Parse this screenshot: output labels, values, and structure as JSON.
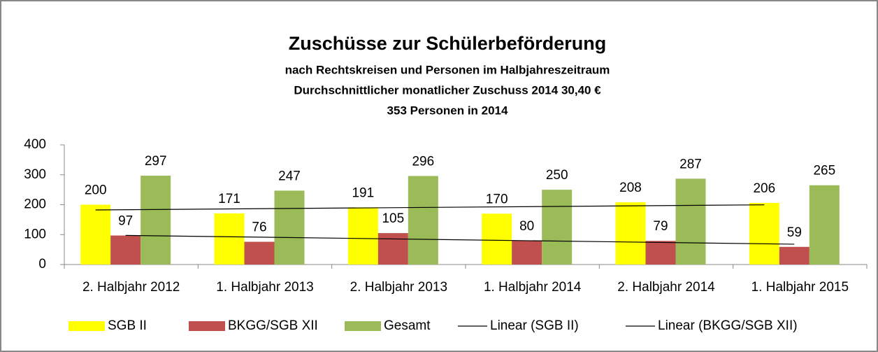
{
  "chart_data": {
    "type": "bar",
    "title": "Zuschüsse zur Schülerbeförderung",
    "subtitles": [
      "nach Rechtskreisen und Personen im Halbjahreszeitraum",
      "Durchschnittlicher monatlicher Zuschuss 2014  30,40 €",
      "353 Personen in 2014"
    ],
    "categories": [
      "2. Halbjahr 2012",
      "1. Halbjahr 2013",
      "2. Halbjahr 2013",
      "1. Halbjahr 2014",
      "2. Halbjahr 2014",
      "1. Halbjahr 2015"
    ],
    "series": [
      {
        "name": "SGB II",
        "color": "#ffff00",
        "values": [
          200,
          171,
          191,
          170,
          208,
          206
        ]
      },
      {
        "name": "BKGG/SGB XII",
        "color": "#c0504d",
        "values": [
          97,
          76,
          105,
          80,
          79,
          59
        ]
      },
      {
        "name": "Gesamt",
        "color": "#9bbb59",
        "values": [
          297,
          247,
          296,
          250,
          287,
          265
        ]
      }
    ],
    "trendlines": [
      {
        "name": "Linear (SGB II)",
        "color": "#000000"
      },
      {
        "name": "Linear (BKGG/SGB XII)",
        "color": "#000000"
      }
    ],
    "ylim": [
      0,
      400
    ],
    "yticks": [
      0,
      100,
      200,
      300,
      400
    ],
    "grid": false
  }
}
